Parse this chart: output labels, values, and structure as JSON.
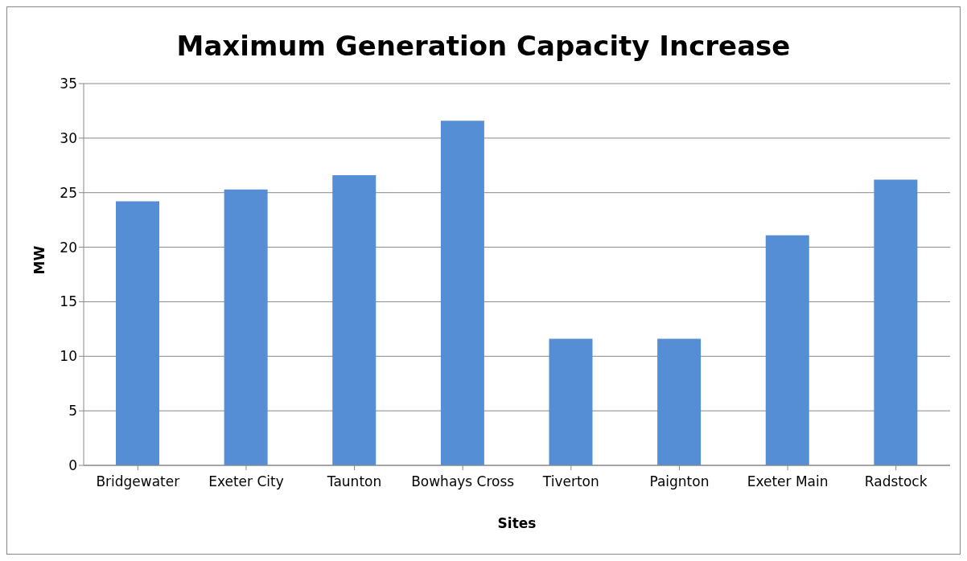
{
  "chart_data": {
    "type": "bar",
    "title": "Maximum Generation Capacity Increase",
    "xlabel": "Sites",
    "ylabel": "MW",
    "categories": [
      "Bridgewater",
      "Exeter City",
      "Taunton",
      "Bowhays Cross",
      "Tiverton",
      "Paignton",
      "Exeter Main",
      "Radstock"
    ],
    "values": [
      24.2,
      25.3,
      26.6,
      31.6,
      11.6,
      11.6,
      21.1,
      26.2
    ],
    "color": "#558ed5",
    "ylim": [
      0,
      35
    ],
    "yticks": [
      0,
      5,
      10,
      15,
      20,
      25,
      30,
      35
    ],
    "grid": "y",
    "legend": false
  }
}
